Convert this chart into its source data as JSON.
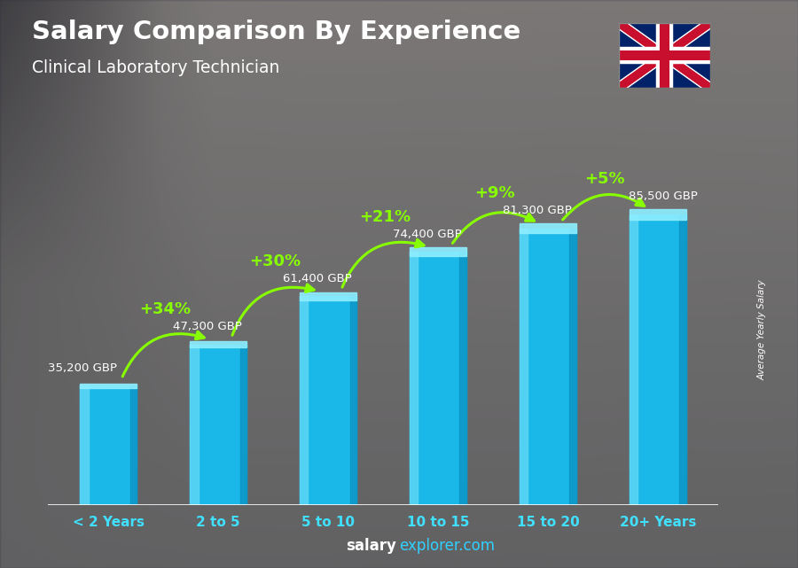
{
  "categories": [
    "< 2 Years",
    "2 to 5",
    "5 to 10",
    "10 to 15",
    "15 to 20",
    "20+ Years"
  ],
  "values": [
    35200,
    47300,
    61400,
    74400,
    81300,
    85500
  ],
  "labels": [
    "35,200 GBP",
    "47,300 GBP",
    "61,400 GBP",
    "74,400 GBP",
    "81,300 GBP",
    "85,500 GBP"
  ],
  "pct_changes": [
    "+34%",
    "+30%",
    "+21%",
    "+9%",
    "+5%"
  ],
  "bar_color_main": "#1ab8e8",
  "bar_color_left": "#5dd6f5",
  "bar_color_right": "#0a90c0",
  "bar_color_top": "#8eeeff",
  "title": "Salary Comparison By Experience",
  "subtitle": "Clinical Laboratory Technician",
  "title_color": "#ffffff",
  "subtitle_color": "#ffffff",
  "label_color": "#ffffff",
  "pct_color": "#88ff00",
  "ylabel": "Average Yearly Salary",
  "footer_salary": "salary",
  "footer_explorer": "explorer.com",
  "ylim_max": 105000,
  "bar_width": 0.52,
  "bg_color_top": "#b8b8b0",
  "bg_color_bottom": "#787870"
}
